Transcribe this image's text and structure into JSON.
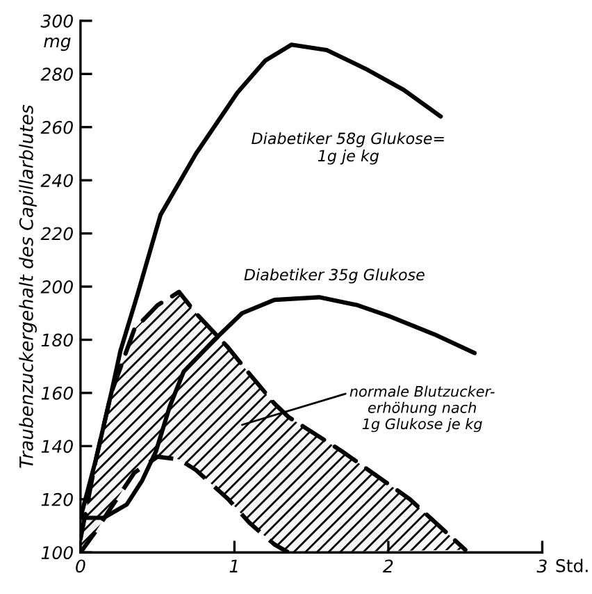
{
  "chart_data": {
    "type": "line",
    "ylabel": "Traubenzuckergehalt des Capillarblutes",
    "xlabel": "Std.",
    "xlim": [
      0,
      3
    ],
    "ylim": [
      100,
      300
    ],
    "xticks": [
      0,
      1,
      2,
      3
    ],
    "yticks": [
      100,
      120,
      140,
      160,
      180,
      200,
      220,
      240,
      260,
      280,
      300
    ],
    "grid": false,
    "legend": false,
    "marker": "none",
    "series": [
      {
        "color": "#000000",
        "line_style": "solid",
        "x": [
          0,
          0.1,
          0.2,
          0.26,
          0.37,
          0.52,
          0.75,
          1.02,
          1.2,
          1.37,
          1.6,
          1.85,
          2.1,
          2.34
        ],
        "values": [
          113,
          135,
          160,
          176,
          197,
          227,
          250,
          273,
          285,
          291,
          289,
          282,
          274,
          264
        ]
      },
      {
        "color": "#000000",
        "line_style": "solid",
        "x": [
          0,
          0.15,
          0.3,
          0.4,
          0.49,
          0.58,
          0.67,
          0.87,
          1.05,
          1.26,
          1.55,
          1.8,
          2.0,
          2.3,
          2.56
        ],
        "values": [
          113,
          113,
          118,
          127,
          138,
          155,
          168,
          180,
          190,
          195,
          196,
          193,
          189,
          182,
          175
        ]
      },
      {
        "type": "area",
        "color": "#000000",
        "line_style": "dashed",
        "x": [
          0,
          0.1,
          0.2,
          0.35,
          0.5,
          0.64,
          0.75,
          0.96,
          1.1,
          1.26,
          1.35,
          1.7,
          2.14,
          2.5
        ],
        "values": [
          105,
          135,
          160,
          184,
          193,
          198,
          190,
          177,
          167,
          156,
          151,
          138,
          120,
          101
        ]
      },
      {
        "color": "#000000",
        "line_style": "dashed",
        "x": [
          0,
          0.1,
          0.2,
          0.35,
          0.5,
          0.64,
          0.75,
          0.96,
          1.1,
          1.26,
          1.35
        ],
        "values": [
          100,
          108,
          117,
          130,
          136,
          135,
          131,
          120,
          111,
          103,
          100
        ]
      }
    ],
    "annotations": [
      "mg",
      "Diabetiker 58g Glukose=\n1g je kg",
      "Diabetiker 35g Glukose",
      "normale Blutzucker-\nerhöhung nach\n1g Glukose je kg"
    ]
  }
}
